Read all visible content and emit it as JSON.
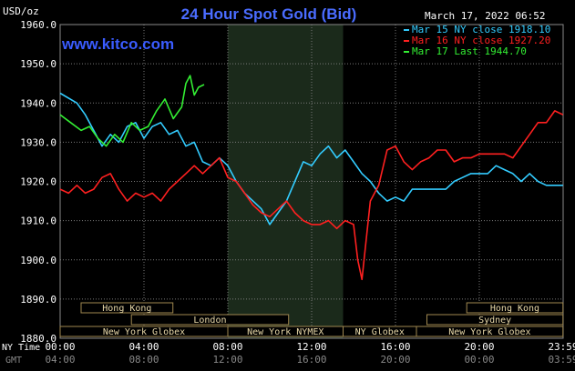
{
  "chart_data": {
    "type": "line",
    "title": "24 Hour Spot Gold (Bid)",
    "ylabel": "USD/oz",
    "date": "March 17, 2022 06:52",
    "watermark": "www.kitco.com",
    "ylim": [
      1880,
      1960
    ],
    "xlim": [
      0,
      24
    ],
    "yticks": [
      "1960.0",
      "1950.0",
      "1940.0",
      "1930.0",
      "1920.0",
      "1910.0",
      "1900.0",
      "1890.0",
      "1880.0"
    ],
    "xticks_ny": [
      "00:00",
      "04:00",
      "08:00",
      "12:00",
      "16:00",
      "20:00",
      "23:59"
    ],
    "xticks_gmt": [
      "04:00",
      "08:00",
      "12:00",
      "16:00",
      "20:00",
      "00:00",
      "03:59"
    ],
    "row_label_ny": "NY Time",
    "row_label_gmt": "GMT",
    "shaded_session": [
      8,
      13.5
    ],
    "legend": [
      {
        "text": "Mar 15 NY close 1918.10",
        "color": "#33ccff"
      },
      {
        "text": "Mar 16 NY close 1927.20",
        "color": "#ff2020"
      },
      {
        "text": "Mar 17 Last 1944.70",
        "color": "#33ee33"
      }
    ],
    "series": [
      {
        "name": "Mar 15",
        "color": "#33ccff",
        "x": [
          0,
          0.8,
          1.2,
          1.6,
          2,
          2.4,
          2.8,
          3.2,
          3.6,
          4,
          4.4,
          4.8,
          5.2,
          5.6,
          6,
          6.4,
          6.8,
          7.2,
          7.6,
          8,
          8.4,
          8.8,
          9.2,
          9.6,
          10,
          10.4,
          10.8,
          11.2,
          11.6,
          12,
          12.4,
          12.8,
          13.2,
          13.6,
          14,
          14.4,
          14.8,
          15.2,
          15.6,
          16,
          16.4,
          16.8,
          17.2,
          17.6,
          18,
          18.4,
          18.8,
          19.2,
          19.6,
          20,
          20.4,
          20.8,
          21.2,
          21.6,
          22,
          22.4,
          22.8,
          23.2,
          23.6,
          23.99
        ],
        "y": [
          1942.5,
          1940,
          1937,
          1933,
          1929,
          1932,
          1930,
          1934,
          1935,
          1931,
          1934,
          1935,
          1932,
          1933,
          1929,
          1930,
          1925,
          1924,
          1926,
          1924,
          1920,
          1917,
          1915,
          1913,
          1909,
          1912,
          1915,
          1920,
          1925,
          1924,
          1927,
          1929,
          1926,
          1928,
          1925,
          1922,
          1920,
          1917,
          1915,
          1916,
          1915,
          1918,
          1918,
          1918,
          1918,
          1918,
          1920,
          1921,
          1922,
          1922,
          1922,
          1924,
          1923,
          1922,
          1920,
          1922,
          1920,
          1919,
          1919,
          1919
        ]
      },
      {
        "name": "Mar 16",
        "color": "#ff2020",
        "x": [
          0,
          0.4,
          0.8,
          1.2,
          1.6,
          2,
          2.4,
          2.8,
          3.2,
          3.6,
          4,
          4.4,
          4.8,
          5.2,
          5.6,
          6,
          6.4,
          6.8,
          7.2,
          7.6,
          8,
          8.4,
          8.8,
          9.2,
          9.6,
          10,
          10.4,
          10.8,
          11.2,
          11.6,
          12,
          12.4,
          12.8,
          13.2,
          13.6,
          14,
          14.2,
          14.4,
          14.6,
          14.8,
          15.2,
          15.6,
          16,
          16.4,
          16.8,
          17.2,
          17.6,
          18,
          18.4,
          18.8,
          19.2,
          19.6,
          20,
          20.4,
          20.8,
          21.2,
          21.6,
          22,
          22.4,
          22.8,
          23.2,
          23.6,
          23.99
        ],
        "y": [
          1918,
          1917,
          1919,
          1917,
          1918,
          1921,
          1922,
          1918,
          1915,
          1917,
          1916,
          1917,
          1915,
          1918,
          1920,
          1922,
          1924,
          1922,
          1924,
          1926,
          1921,
          1920,
          1917,
          1914,
          1912,
          1911,
          1913,
          1915,
          1912,
          1910,
          1909,
          1909,
          1910,
          1908,
          1910,
          1909,
          1900,
          1895,
          1905,
          1915,
          1919,
          1928,
          1929,
          1925,
          1923,
          1925,
          1926,
          1928,
          1928,
          1925,
          1926,
          1926,
          1927,
          1927,
          1927,
          1927,
          1926,
          1929,
          1932,
          1935,
          1935,
          1938,
          1937
        ]
      },
      {
        "name": "Mar 17",
        "color": "#33ee33",
        "x": [
          0,
          0.5,
          1,
          1.4,
          1.8,
          2.2,
          2.6,
          3,
          3.4,
          3.8,
          4.2,
          4.6,
          5,
          5.4,
          5.8,
          6,
          6.2,
          6.4,
          6.6,
          6.87
        ],
        "y": [
          1937,
          1935,
          1933,
          1934,
          1931,
          1929,
          1932,
          1930,
          1935,
          1933,
          1934,
          1938,
          1941,
          1936,
          1939,
          1945,
          1947,
          1942,
          1944,
          1944.7
        ]
      }
    ],
    "sessions": [
      {
        "name": "Hong Kong",
        "start": 1.0,
        "end": 5.38
      },
      {
        "name": "London",
        "start": 3.4,
        "end": 10.9
      },
      {
        "name": "New York Globex",
        "start": 0.0,
        "end": 8.0
      },
      {
        "name": "New York NYMEX",
        "start": 8.0,
        "end": 13.5
      },
      {
        "name": "NY Globex",
        "start": 13.5,
        "end": 17.0
      },
      {
        "name": "Hong Kong",
        "start": 19.4,
        "end": 23.99
      },
      {
        "name": "Sydney",
        "start": 17.5,
        "end": 23.99
      },
      {
        "name": "New York Globex",
        "start": 17.0,
        "end": 23.99
      }
    ]
  }
}
